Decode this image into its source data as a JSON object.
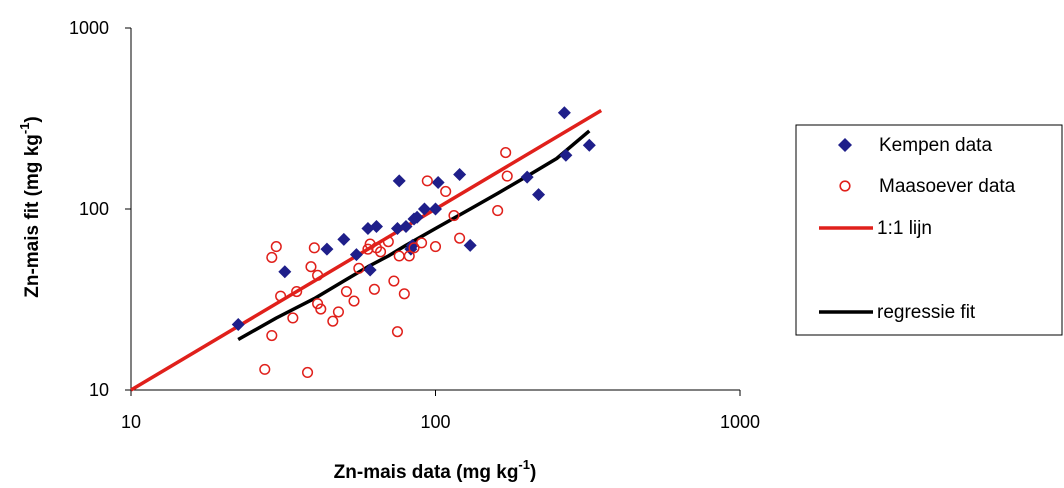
{
  "chart_data": {
    "type": "scatter",
    "title": "",
    "xlabel": {
      "main": "Zn-mais data (mg kg",
      "sup": "-1",
      "tail": ")"
    },
    "ylabel": {
      "main": "Zn-mais fit (mg kg",
      "sup": "-1",
      "tail": ")"
    },
    "xscale": "log",
    "yscale": "log",
    "xlim": [
      10,
      1000
    ],
    "ylim": [
      10,
      1000
    ],
    "x_ticks": [
      "10",
      "100",
      "1000"
    ],
    "y_ticks": [
      "10",
      "100",
      "1000"
    ],
    "legend_position": "right",
    "grid": false,
    "series": [
      {
        "name": "Kempen data",
        "kind": "marker",
        "marker": "diamond",
        "color": "#1f1f8a",
        "points": [
          [
            22.5,
            23
          ],
          [
            32,
            45
          ],
          [
            44,
            60
          ],
          [
            50,
            68
          ],
          [
            55,
            56
          ],
          [
            60,
            78
          ],
          [
            61,
            46
          ],
          [
            64,
            80
          ],
          [
            75,
            78
          ],
          [
            76,
            143
          ],
          [
            80,
            80
          ],
          [
            83,
            60
          ],
          [
            84,
            63
          ],
          [
            85,
            88
          ],
          [
            87,
            90
          ],
          [
            92,
            100
          ],
          [
            100,
            100
          ],
          [
            102,
            140
          ],
          [
            120,
            155
          ],
          [
            130,
            63
          ],
          [
            200,
            150
          ],
          [
            218,
            120
          ],
          [
            265,
            340
          ],
          [
            268,
            198
          ],
          [
            320,
            225
          ]
        ]
      },
      {
        "name": "Maasoever data",
        "kind": "marker",
        "marker": "open-circle",
        "color": "#e0201b",
        "points": [
          [
            27.5,
            13
          ],
          [
            29,
            20
          ],
          [
            29,
            54
          ],
          [
            30,
            62
          ],
          [
            31,
            33
          ],
          [
            34,
            25
          ],
          [
            35,
            35
          ],
          [
            38,
            12.5
          ],
          [
            39,
            48
          ],
          [
            40,
            61
          ],
          [
            41,
            43
          ],
          [
            41,
            30
          ],
          [
            42,
            28
          ],
          [
            46,
            24
          ],
          [
            48,
            27
          ],
          [
            51,
            35
          ],
          [
            54,
            31
          ],
          [
            56,
            47
          ],
          [
            60,
            60
          ],
          [
            61,
            64
          ],
          [
            63,
            36
          ],
          [
            64,
            61
          ],
          [
            66,
            58
          ],
          [
            70,
            66
          ],
          [
            73,
            40
          ],
          [
            75,
            21
          ],
          [
            76,
            55
          ],
          [
            79,
            34
          ],
          [
            82,
            55
          ],
          [
            85,
            61
          ],
          [
            90,
            65
          ],
          [
            94,
            143
          ],
          [
            100,
            62
          ],
          [
            108,
            125
          ],
          [
            115,
            92
          ],
          [
            120,
            69
          ],
          [
            160,
            98
          ],
          [
            170,
            205
          ],
          [
            172,
            152
          ]
        ]
      },
      {
        "name": "1:1 lijn",
        "kind": "line",
        "color": "#e0201b",
        "points": [
          [
            10,
            10
          ],
          [
            350,
            350
          ]
        ]
      },
      {
        "name": "regressie fit",
        "kind": "line",
        "color": "#000000",
        "points": [
          [
            22.5,
            19
          ],
          [
            30,
            25
          ],
          [
            40,
            32
          ],
          [
            50,
            40
          ],
          [
            60,
            48
          ],
          [
            70,
            55
          ],
          [
            80,
            63
          ],
          [
            100,
            78
          ],
          [
            130,
            100
          ],
          [
            160,
            122
          ],
          [
            200,
            152
          ],
          [
            250,
            190
          ],
          [
            320,
            270
          ]
        ]
      }
    ]
  }
}
